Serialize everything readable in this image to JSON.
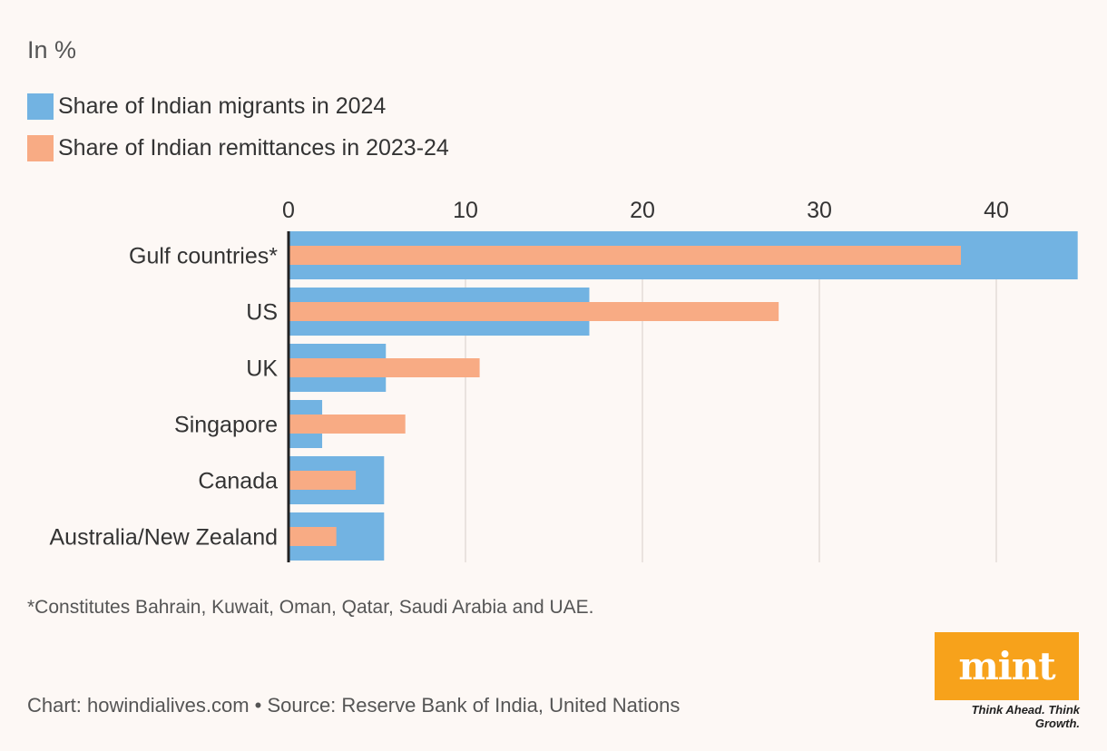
{
  "unit_label": "In %",
  "chart_data": {
    "type": "bar",
    "orientation": "horizontal",
    "title": "",
    "xlabel": "",
    "ylabel": "",
    "unit": "In %",
    "xlim": [
      0,
      44.6
    ],
    "xticks": [
      0,
      10,
      20,
      30,
      40
    ],
    "categories": [
      "Gulf countries*",
      "US",
      "UK",
      "Singapore",
      "Canada",
      "Australia/New Zealand"
    ],
    "series": [
      {
        "name": "Share of Indian migrants in 2024",
        "color": "#72b3e2",
        "values": [
          44.6,
          17.0,
          5.5,
          1.9,
          5.4,
          5.4
        ]
      },
      {
        "name": "Share of Indian remittances in 2023-24",
        "color": "#f8ab84",
        "values": [
          38.0,
          27.7,
          10.8,
          6.6,
          3.8,
          2.7
        ]
      }
    ],
    "grid": true,
    "legend_position": "top-left"
  },
  "footnote": "*Constitutes Bahrain, Kuwait, Oman, Qatar, Saudi Arabia and UAE.",
  "credit": "Chart: howindialives.com • Source: Reserve Bank of India, United Nations",
  "logo": {
    "text": "mint",
    "tagline": "Think Ahead. Think Growth.",
    "color": "#f7a21b"
  }
}
